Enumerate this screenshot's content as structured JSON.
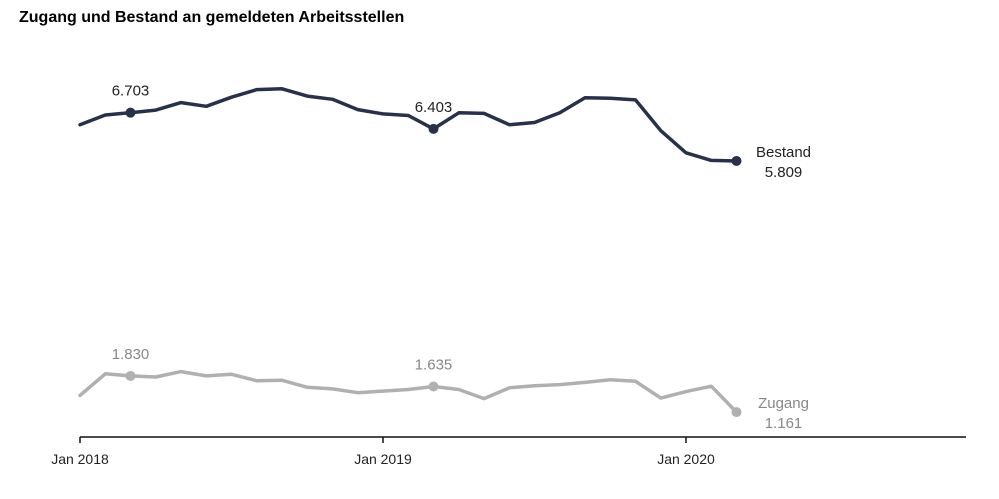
{
  "chart_data": {
    "type": "line",
    "title": "Zugang und Bestand an gemeldeten Arbeitsstellen",
    "xlabel": "",
    "ylabel": "",
    "x_ticks": [
      "Jan 2018",
      "Jan 2019",
      "Jan 2020"
    ],
    "x_range": [
      "2018-01",
      "2020-12"
    ],
    "y_range": [
      700,
      7400
    ],
    "grid": false,
    "legend": "inline-end-labels",
    "x": [
      "2018-01",
      "2018-02",
      "2018-03",
      "2018-04",
      "2018-05",
      "2018-06",
      "2018-07",
      "2018-08",
      "2018-09",
      "2018-10",
      "2018-11",
      "2018-12",
      "2019-01",
      "2019-02",
      "2019-03",
      "2019-04",
      "2019-05",
      "2019-06",
      "2019-07",
      "2019-08",
      "2019-09",
      "2019-10",
      "2019-11",
      "2019-12",
      "2020-01",
      "2020-02",
      "2020-03"
    ],
    "series": [
      {
        "name": "Bestand",
        "color": "#27314a",
        "values": [
          6480,
          6660,
          6703,
          6750,
          6890,
          6820,
          6990,
          7130,
          7145,
          7010,
          6950,
          6760,
          6680,
          6650,
          6403,
          6700,
          6690,
          6480,
          6520,
          6700,
          6980,
          6970,
          6940,
          6370,
          5960,
          5820,
          5809
        ],
        "annotations": [
          {
            "x": "2018-03",
            "label": "6.703"
          },
          {
            "x": "2019-03",
            "label": "6.403"
          }
        ],
        "end_label": {
          "name": "Bestand",
          "value": "5.809"
        }
      },
      {
        "name": "Zugang",
        "color": "#b0b0b0",
        "values": [
          1470,
          1870,
          1830,
          1810,
          1910,
          1830,
          1860,
          1740,
          1750,
          1620,
          1590,
          1520,
          1550,
          1580,
          1635,
          1580,
          1410,
          1610,
          1650,
          1670,
          1710,
          1760,
          1730,
          1420,
          1540,
          1640,
          1161
        ],
        "annotations": [
          {
            "x": "2018-03",
            "label": "1.830"
          },
          {
            "x": "2019-03",
            "label": "1.635"
          }
        ],
        "end_label": {
          "name": "Zugang",
          "value": "1.161"
        }
      }
    ]
  }
}
